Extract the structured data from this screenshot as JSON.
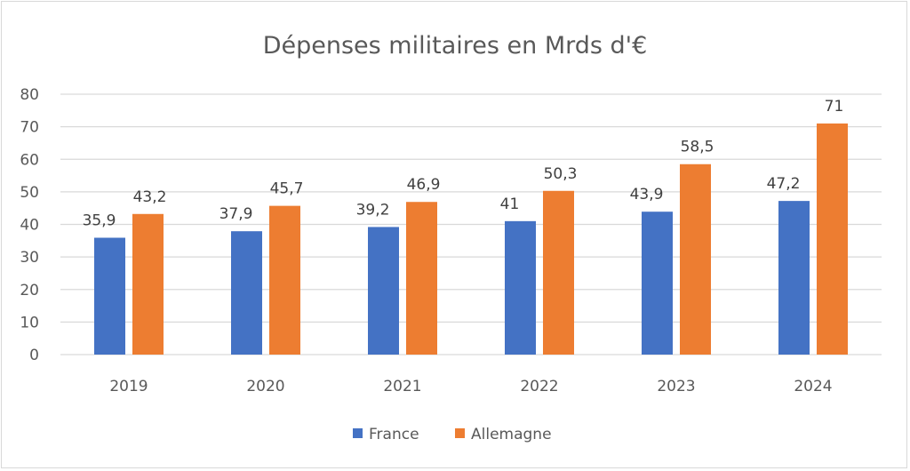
{
  "chart_data": {
    "type": "bar",
    "title": "Dépenses militaires en Mrds d'€",
    "xlabel": "",
    "ylabel": "",
    "categories": [
      "2019",
      "2020",
      "2021",
      "2022",
      "2023",
      "2024"
    ],
    "series": [
      {
        "name": "France",
        "color": "#4472c4",
        "values": [
          35.9,
          37.9,
          39.2,
          41,
          43.9,
          47.2
        ],
        "labels": [
          "35,9",
          "37,9",
          "39,2",
          "41",
          "43,9",
          "47,2"
        ]
      },
      {
        "name": "Allemagne",
        "color": "#ed7d31",
        "values": [
          43.2,
          45.7,
          46.9,
          50.3,
          58.5,
          71
        ],
        "labels": [
          "43,2",
          "45,7",
          "46,9",
          "50,3",
          "58,5",
          "71"
        ]
      }
    ],
    "ylim": [
      0,
      80
    ],
    "yticks": [
      "0",
      "10",
      "20",
      "30",
      "40",
      "50",
      "60",
      "70",
      "80"
    ],
    "grid": true,
    "legend": "bottom"
  }
}
